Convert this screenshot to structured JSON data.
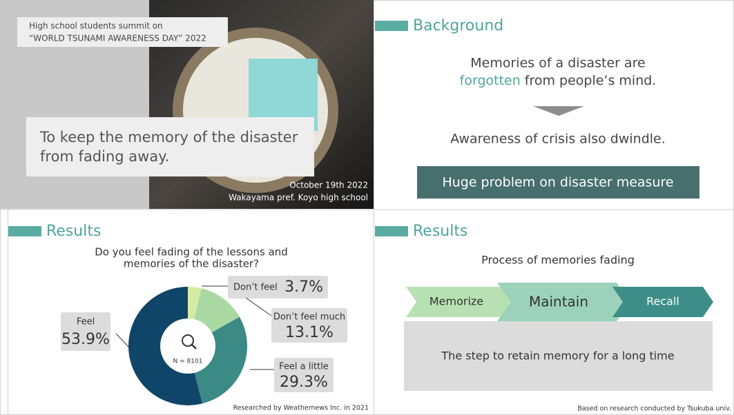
{
  "slides": [
    {
      "label_lines": [
        "High school students summit on",
        "“WORLD TSUNAMI AWARENESS DAY” 2022"
      ],
      "headline_lines": [
        "To keep the memory of the disaster",
        "from fading away."
      ],
      "date": "October 19th 2022",
      "place": "Wakayama pref. Koyo high school"
    },
    {
      "heading": "Background",
      "line1": "Memories of a disaster are",
      "highlight": "forgotten",
      "line2_rest": "from people’s mind.",
      "line3": "Awareness of crisis also dwindle.",
      "callout": "Huge problem on disaster measure"
    },
    {
      "heading": "Results"
    },
    {
      "heading": "Results",
      "subtitle": "Process of memories fading",
      "steps": [
        "Memorize",
        "Maintain",
        "Recall"
      ],
      "note": "The step to retain memory for a long time",
      "source": "Based on research conducted by Tsukuba univ."
    }
  ],
  "chart_data": {
    "type": "donut",
    "title_lines": [
      "Do you feel fading of the lessons and",
      "memories of the disaster?"
    ],
    "categories": [
      "Don’t feel",
      "Don’t feel much",
      "Feel a little",
      "Feel"
    ],
    "values": [
      3.7,
      13.1,
      29.3,
      53.9
    ],
    "value_labels": [
      "3.7%",
      "13.1%",
      "29.3%",
      "53.9%"
    ],
    "colors": [
      "#d3eba3",
      "#a9d8a2",
      "#3b8a86",
      "#0f4568"
    ],
    "center_label": "N = 8101",
    "source": "Researched by Weathernews Inc. in 2021"
  }
}
